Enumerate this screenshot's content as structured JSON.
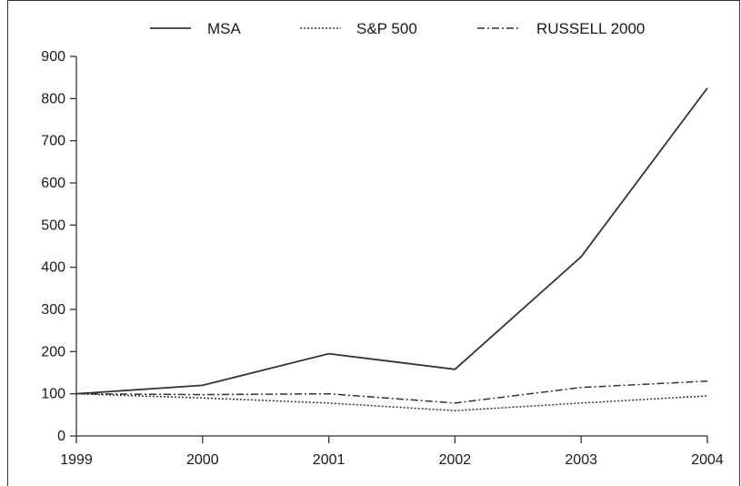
{
  "chart_data": {
    "type": "line",
    "categories": [
      "1999",
      "2000",
      "2001",
      "2002",
      "2003",
      "2004"
    ],
    "ylim": [
      0,
      900
    ],
    "yticks": [
      0,
      100,
      200,
      300,
      400,
      500,
      600,
      700,
      800,
      900
    ],
    "grid": false,
    "legend_position": "top",
    "series": [
      {
        "name": "MSA",
        "style": "solid",
        "color": "#333333",
        "values": [
          100,
          120,
          195,
          158,
          425,
          825
        ]
      },
      {
        "name": "S&P 500",
        "style": "dotted",
        "color": "#333333",
        "values": [
          100,
          90,
          78,
          60,
          78,
          95
        ]
      },
      {
        "name": "RUSSELL 2000",
        "style": "dashdot",
        "color": "#333333",
        "values": [
          100,
          98,
          100,
          78,
          115,
          130
        ]
      }
    ]
  }
}
